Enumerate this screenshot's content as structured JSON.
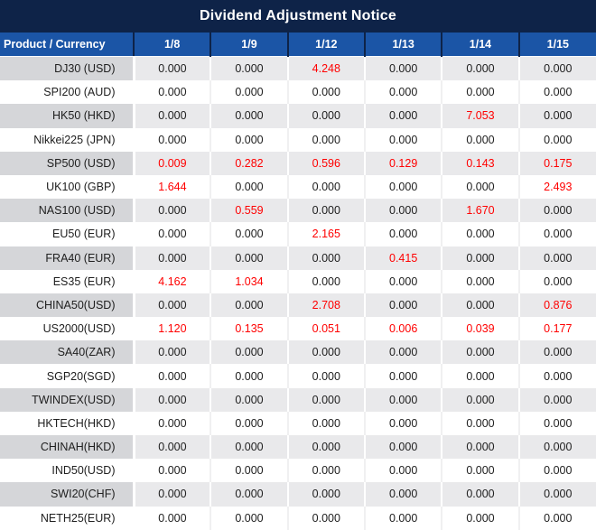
{
  "chart_data": {
    "type": "table",
    "title": "Dividend Adjustment Notice",
    "columns": [
      "Product / Currency",
      "1/8",
      "1/9",
      "1/12",
      "1/13",
      "1/14",
      "1/15"
    ],
    "rows": [
      {
        "product": "DJ30 (USD)",
        "values": [
          "0.000",
          "0.000",
          "4.248",
          "0.000",
          "0.000",
          "0.000"
        ]
      },
      {
        "product": "SPI200 (AUD)",
        "values": [
          "0.000",
          "0.000",
          "0.000",
          "0.000",
          "0.000",
          "0.000"
        ]
      },
      {
        "product": "HK50 (HKD)",
        "values": [
          "0.000",
          "0.000",
          "0.000",
          "0.000",
          "7.053",
          "0.000"
        ]
      },
      {
        "product": "Nikkei225 (JPN)",
        "values": [
          "0.000",
          "0.000",
          "0.000",
          "0.000",
          "0.000",
          "0.000"
        ]
      },
      {
        "product": "SP500 (USD)",
        "values": [
          "0.009",
          "0.282",
          "0.596",
          "0.129",
          "0.143",
          "0.175"
        ]
      },
      {
        "product": "UK100 (GBP)",
        "values": [
          "1.644",
          "0.000",
          "0.000",
          "0.000",
          "0.000",
          "2.493"
        ]
      },
      {
        "product": "NAS100 (USD)",
        "values": [
          "0.000",
          "0.559",
          "0.000",
          "0.000",
          "1.670",
          "0.000"
        ]
      },
      {
        "product": "EU50 (EUR)",
        "values": [
          "0.000",
          "0.000",
          "2.165",
          "0.000",
          "0.000",
          "0.000"
        ]
      },
      {
        "product": "FRA40 (EUR)",
        "values": [
          "0.000",
          "0.000",
          "0.000",
          "0.415",
          "0.000",
          "0.000"
        ]
      },
      {
        "product": "ES35 (EUR)",
        "values": [
          "4.162",
          "1.034",
          "0.000",
          "0.000",
          "0.000",
          "0.000"
        ]
      },
      {
        "product": "CHINA50(USD)",
        "values": [
          "0.000",
          "0.000",
          "2.708",
          "0.000",
          "0.000",
          "0.876"
        ]
      },
      {
        "product": "US2000(USD)",
        "values": [
          "1.120",
          "0.135",
          "0.051",
          "0.006",
          "0.039",
          "0.177"
        ]
      },
      {
        "product": "SA40(ZAR)",
        "values": [
          "0.000",
          "0.000",
          "0.000",
          "0.000",
          "0.000",
          "0.000"
        ]
      },
      {
        "product": "SGP20(SGD)",
        "values": [
          "0.000",
          "0.000",
          "0.000",
          "0.000",
          "0.000",
          "0.000"
        ]
      },
      {
        "product": "TWINDEX(USD)",
        "values": [
          "0.000",
          "0.000",
          "0.000",
          "0.000",
          "0.000",
          "0.000"
        ]
      },
      {
        "product": "HKTECH(HKD)",
        "values": [
          "0.000",
          "0.000",
          "0.000",
          "0.000",
          "0.000",
          "0.000"
        ]
      },
      {
        "product": "CHINAH(HKD)",
        "values": [
          "0.000",
          "0.000",
          "0.000",
          "0.000",
          "0.000",
          "0.000"
        ]
      },
      {
        "product": "IND50(USD)",
        "values": [
          "0.000",
          "0.000",
          "0.000",
          "0.000",
          "0.000",
          "0.000"
        ]
      },
      {
        "product": "SWI20(CHF)",
        "values": [
          "0.000",
          "0.000",
          "0.000",
          "0.000",
          "0.000",
          "0.000"
        ]
      },
      {
        "product": "NETH25(EUR)",
        "values": [
          "0.000",
          "0.000",
          "0.000",
          "0.000",
          "0.000",
          "0.000"
        ]
      }
    ],
    "layout": {
      "highlight_rule": "non-zero values shown in red",
      "row_striping": "odd rows gray, even rows white"
    },
    "colors": {
      "title_bg": "#0e2348",
      "header_bg": "#1b55a6",
      "header_text": "#ffffff",
      "odd_row_label_bg": "#d5d6d9",
      "odd_row_value_bg": "#e9e9eb",
      "even_row_bg": "#ffffff",
      "text": "#202020",
      "highlight": "#ff0000"
    }
  }
}
